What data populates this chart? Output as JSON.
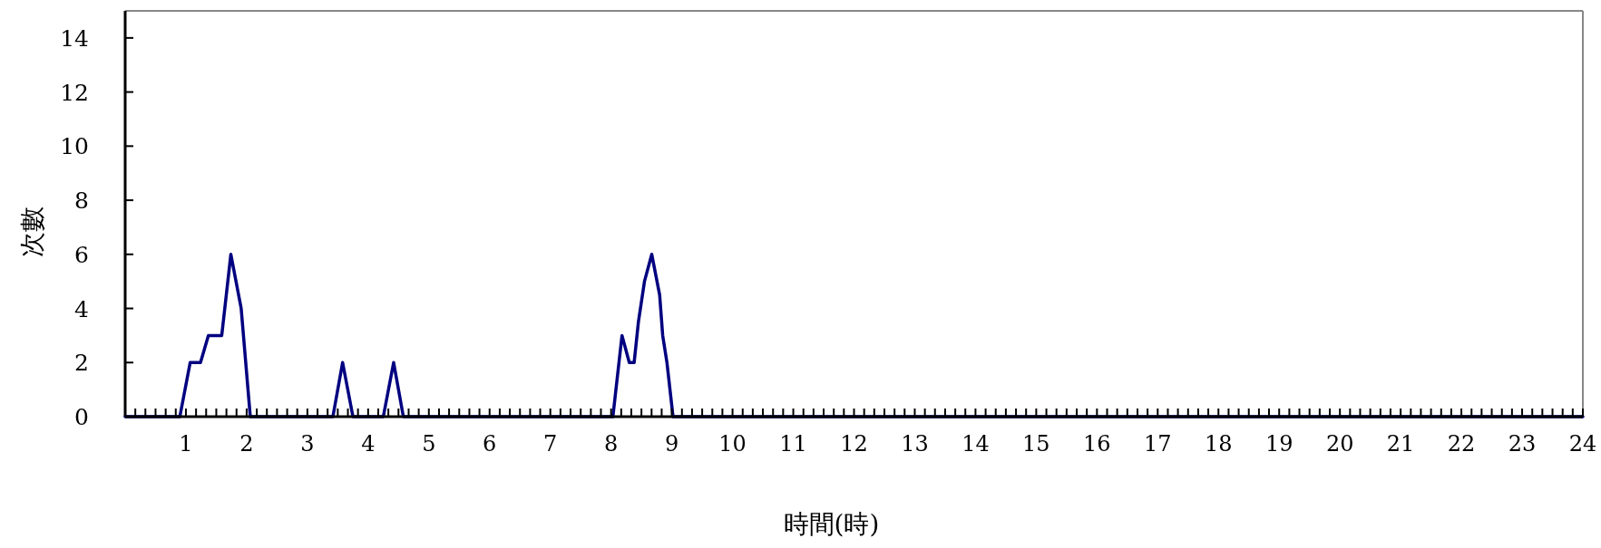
{
  "chart_data": {
    "type": "line",
    "xlabel": "時間(時)",
    "ylabel": "次數",
    "xlim": [
      0,
      24
    ],
    "ylim": [
      0,
      15
    ],
    "yticks": [
      0,
      2,
      4,
      6,
      8,
      10,
      12,
      14
    ],
    "xticks": [
      {
        "value": 0.167,
        "label": null
      },
      {
        "value": 0.333,
        "label": null
      },
      {
        "value": 0.5,
        "label": null
      },
      {
        "value": 0.667,
        "label": null
      },
      {
        "value": 0.833,
        "label": null
      },
      1,
      {
        "value": 1.167,
        "label": null
      },
      {
        "value": 1.333,
        "label": null
      },
      {
        "value": 1.5,
        "label": null
      },
      {
        "value": 1.667,
        "label": null
      },
      {
        "value": 1.833,
        "label": null
      },
      2,
      {
        "value": 2.167,
        "label": null
      },
      {
        "value": 2.333,
        "label": null
      },
      {
        "value": 2.5,
        "label": null
      },
      {
        "value": 2.667,
        "label": null
      },
      {
        "value": 2.833,
        "label": null
      },
      3,
      {
        "value": 3.167,
        "label": null
      },
      {
        "value": 3.333,
        "label": null
      },
      {
        "value": 3.5,
        "label": null
      },
      {
        "value": 3.667,
        "label": null
      },
      {
        "value": 3.833,
        "label": null
      },
      4,
      {
        "value": 4.167,
        "label": null
      },
      {
        "value": 4.333,
        "label": null
      },
      {
        "value": 4.5,
        "label": null
      },
      {
        "value": 4.667,
        "label": null
      },
      {
        "value": 4.833,
        "label": null
      },
      5,
      {
        "value": 5.167,
        "label": null
      },
      {
        "value": 5.333,
        "label": null
      },
      {
        "value": 5.5,
        "label": null
      },
      {
        "value": 5.667,
        "label": null
      },
      {
        "value": 5.833,
        "label": null
      },
      6,
      {
        "value": 6.167,
        "label": null
      },
      {
        "value": 6.333,
        "label": null
      },
      {
        "value": 6.5,
        "label": null
      },
      {
        "value": 6.667,
        "label": null
      },
      {
        "value": 6.833,
        "label": null
      },
      7,
      {
        "value": 7.167,
        "label": null
      },
      {
        "value": 7.333,
        "label": null
      },
      {
        "value": 7.5,
        "label": null
      },
      {
        "value": 7.667,
        "label": null
      },
      {
        "value": 7.833,
        "label": null
      },
      8,
      {
        "value": 8.167,
        "label": null
      },
      {
        "value": 8.333,
        "label": null
      },
      {
        "value": 8.5,
        "label": null
      },
      {
        "value": 8.667,
        "label": null
      },
      {
        "value": 8.833,
        "label": null
      },
      9,
      {
        "value": 9.167,
        "label": null
      },
      {
        "value": 9.333,
        "label": null
      },
      {
        "value": 9.5,
        "label": null
      },
      {
        "value": 9.667,
        "label": null
      },
      {
        "value": 9.833,
        "label": null
      },
      10,
      {
        "value": 10.167,
        "label": null
      },
      {
        "value": 10.333,
        "label": null
      },
      {
        "value": 10.5,
        "label": null
      },
      {
        "value": 10.667,
        "label": null
      },
      {
        "value": 10.833,
        "label": null
      },
      11,
      {
        "value": 11.167,
        "label": null
      },
      {
        "value": 11.333,
        "label": null
      },
      {
        "value": 11.5,
        "label": null
      },
      {
        "value": 11.667,
        "label": null
      },
      {
        "value": 11.833,
        "label": null
      },
      12,
      {
        "value": 12.167,
        "label": null
      },
      {
        "value": 12.333,
        "label": null
      },
      {
        "value": 12.5,
        "label": null
      },
      {
        "value": 12.667,
        "label": null
      },
      {
        "value": 12.833,
        "label": null
      },
      13,
      {
        "value": 13.167,
        "label": null
      },
      {
        "value": 13.333,
        "label": null
      },
      {
        "value": 13.5,
        "label": null
      },
      {
        "value": 13.667,
        "label": null
      },
      {
        "value": 13.833,
        "label": null
      },
      14,
      {
        "value": 14.167,
        "label": null
      },
      {
        "value": 14.333,
        "label": null
      },
      {
        "value": 14.5,
        "label": null
      },
      {
        "value": 14.667,
        "label": null
      },
      {
        "value": 14.833,
        "label": null
      },
      15,
      {
        "value": 15.167,
        "label": null
      },
      {
        "value": 15.333,
        "label": null
      },
      {
        "value": 15.5,
        "label": null
      },
      {
        "value": 15.667,
        "label": null
      },
      {
        "value": 15.833,
        "label": null
      },
      16,
      {
        "value": 16.167,
        "label": null
      },
      {
        "value": 16.333,
        "label": null
      },
      {
        "value": 16.5,
        "label": null
      },
      {
        "value": 16.667,
        "label": null
      },
      {
        "value": 16.833,
        "label": null
      },
      17,
      {
        "value": 17.167,
        "label": null
      },
      {
        "value": 17.333,
        "label": null
      },
      {
        "value": 17.5,
        "label": null
      },
      {
        "value": 17.667,
        "label": null
      },
      {
        "value": 17.833,
        "label": null
      },
      18,
      {
        "value": 18.167,
        "label": null
      },
      {
        "value": 18.333,
        "label": null
      },
      {
        "value": 18.5,
        "label": null
      },
      {
        "value": 18.667,
        "label": null
      },
      {
        "value": 18.833,
        "label": null
      },
      19,
      {
        "value": 19.167,
        "label": null
      },
      {
        "value": 19.333,
        "label": null
      },
      {
        "value": 19.5,
        "label": null
      },
      {
        "value": 19.667,
        "label": null
      },
      {
        "value": 19.833,
        "label": null
      },
      20,
      {
        "value": 20.167,
        "label": null
      },
      {
        "value": 20.333,
        "label": null
      },
      {
        "value": 20.5,
        "label": null
      },
      {
        "value": 20.667,
        "label": null
      },
      {
        "value": 20.833,
        "label": null
      },
      21,
      {
        "value": 21.167,
        "label": null
      },
      {
        "value": 21.333,
        "label": null
      },
      {
        "value": 21.5,
        "label": null
      },
      {
        "value": 21.667,
        "label": null
      },
      {
        "value": 21.833,
        "label": null
      },
      22,
      {
        "value": 22.167,
        "label": null
      },
      {
        "value": 22.333,
        "label": null
      },
      {
        "value": 22.5,
        "label": null
      },
      {
        "value": 22.667,
        "label": null
      },
      {
        "value": 22.833,
        "label": null
      },
      23,
      {
        "value": 23.167,
        "label": null
      },
      {
        "value": 23.333,
        "label": null
      },
      {
        "value": 23.5,
        "label": null
      },
      {
        "value": 23.667,
        "label": null
      },
      {
        "value": 23.833,
        "label": null
      },
      24
    ],
    "grid": false,
    "marker": "none",
    "line_style": "solid",
    "series": [
      {
        "color": "#000080",
        "x": [
          0,
          0.9,
          1.07,
          1.24,
          1.37,
          1.59,
          1.74,
          1.91,
          2.06,
          3.42,
          3.58,
          3.75,
          4.25,
          4.42,
          4.58,
          8.03,
          8.18,
          8.3,
          8.38,
          8.45,
          8.55,
          8.67,
          8.8,
          8.85,
          8.92,
          9.02,
          24
        ],
        "values": [
          0,
          0,
          2,
          2,
          3,
          3,
          6,
          4,
          0,
          0,
          2,
          0,
          0,
          2,
          0,
          0,
          3,
          2,
          2,
          3.5,
          5,
          6,
          4.5,
          3,
          2,
          0,
          0
        ]
      }
    ]
  }
}
